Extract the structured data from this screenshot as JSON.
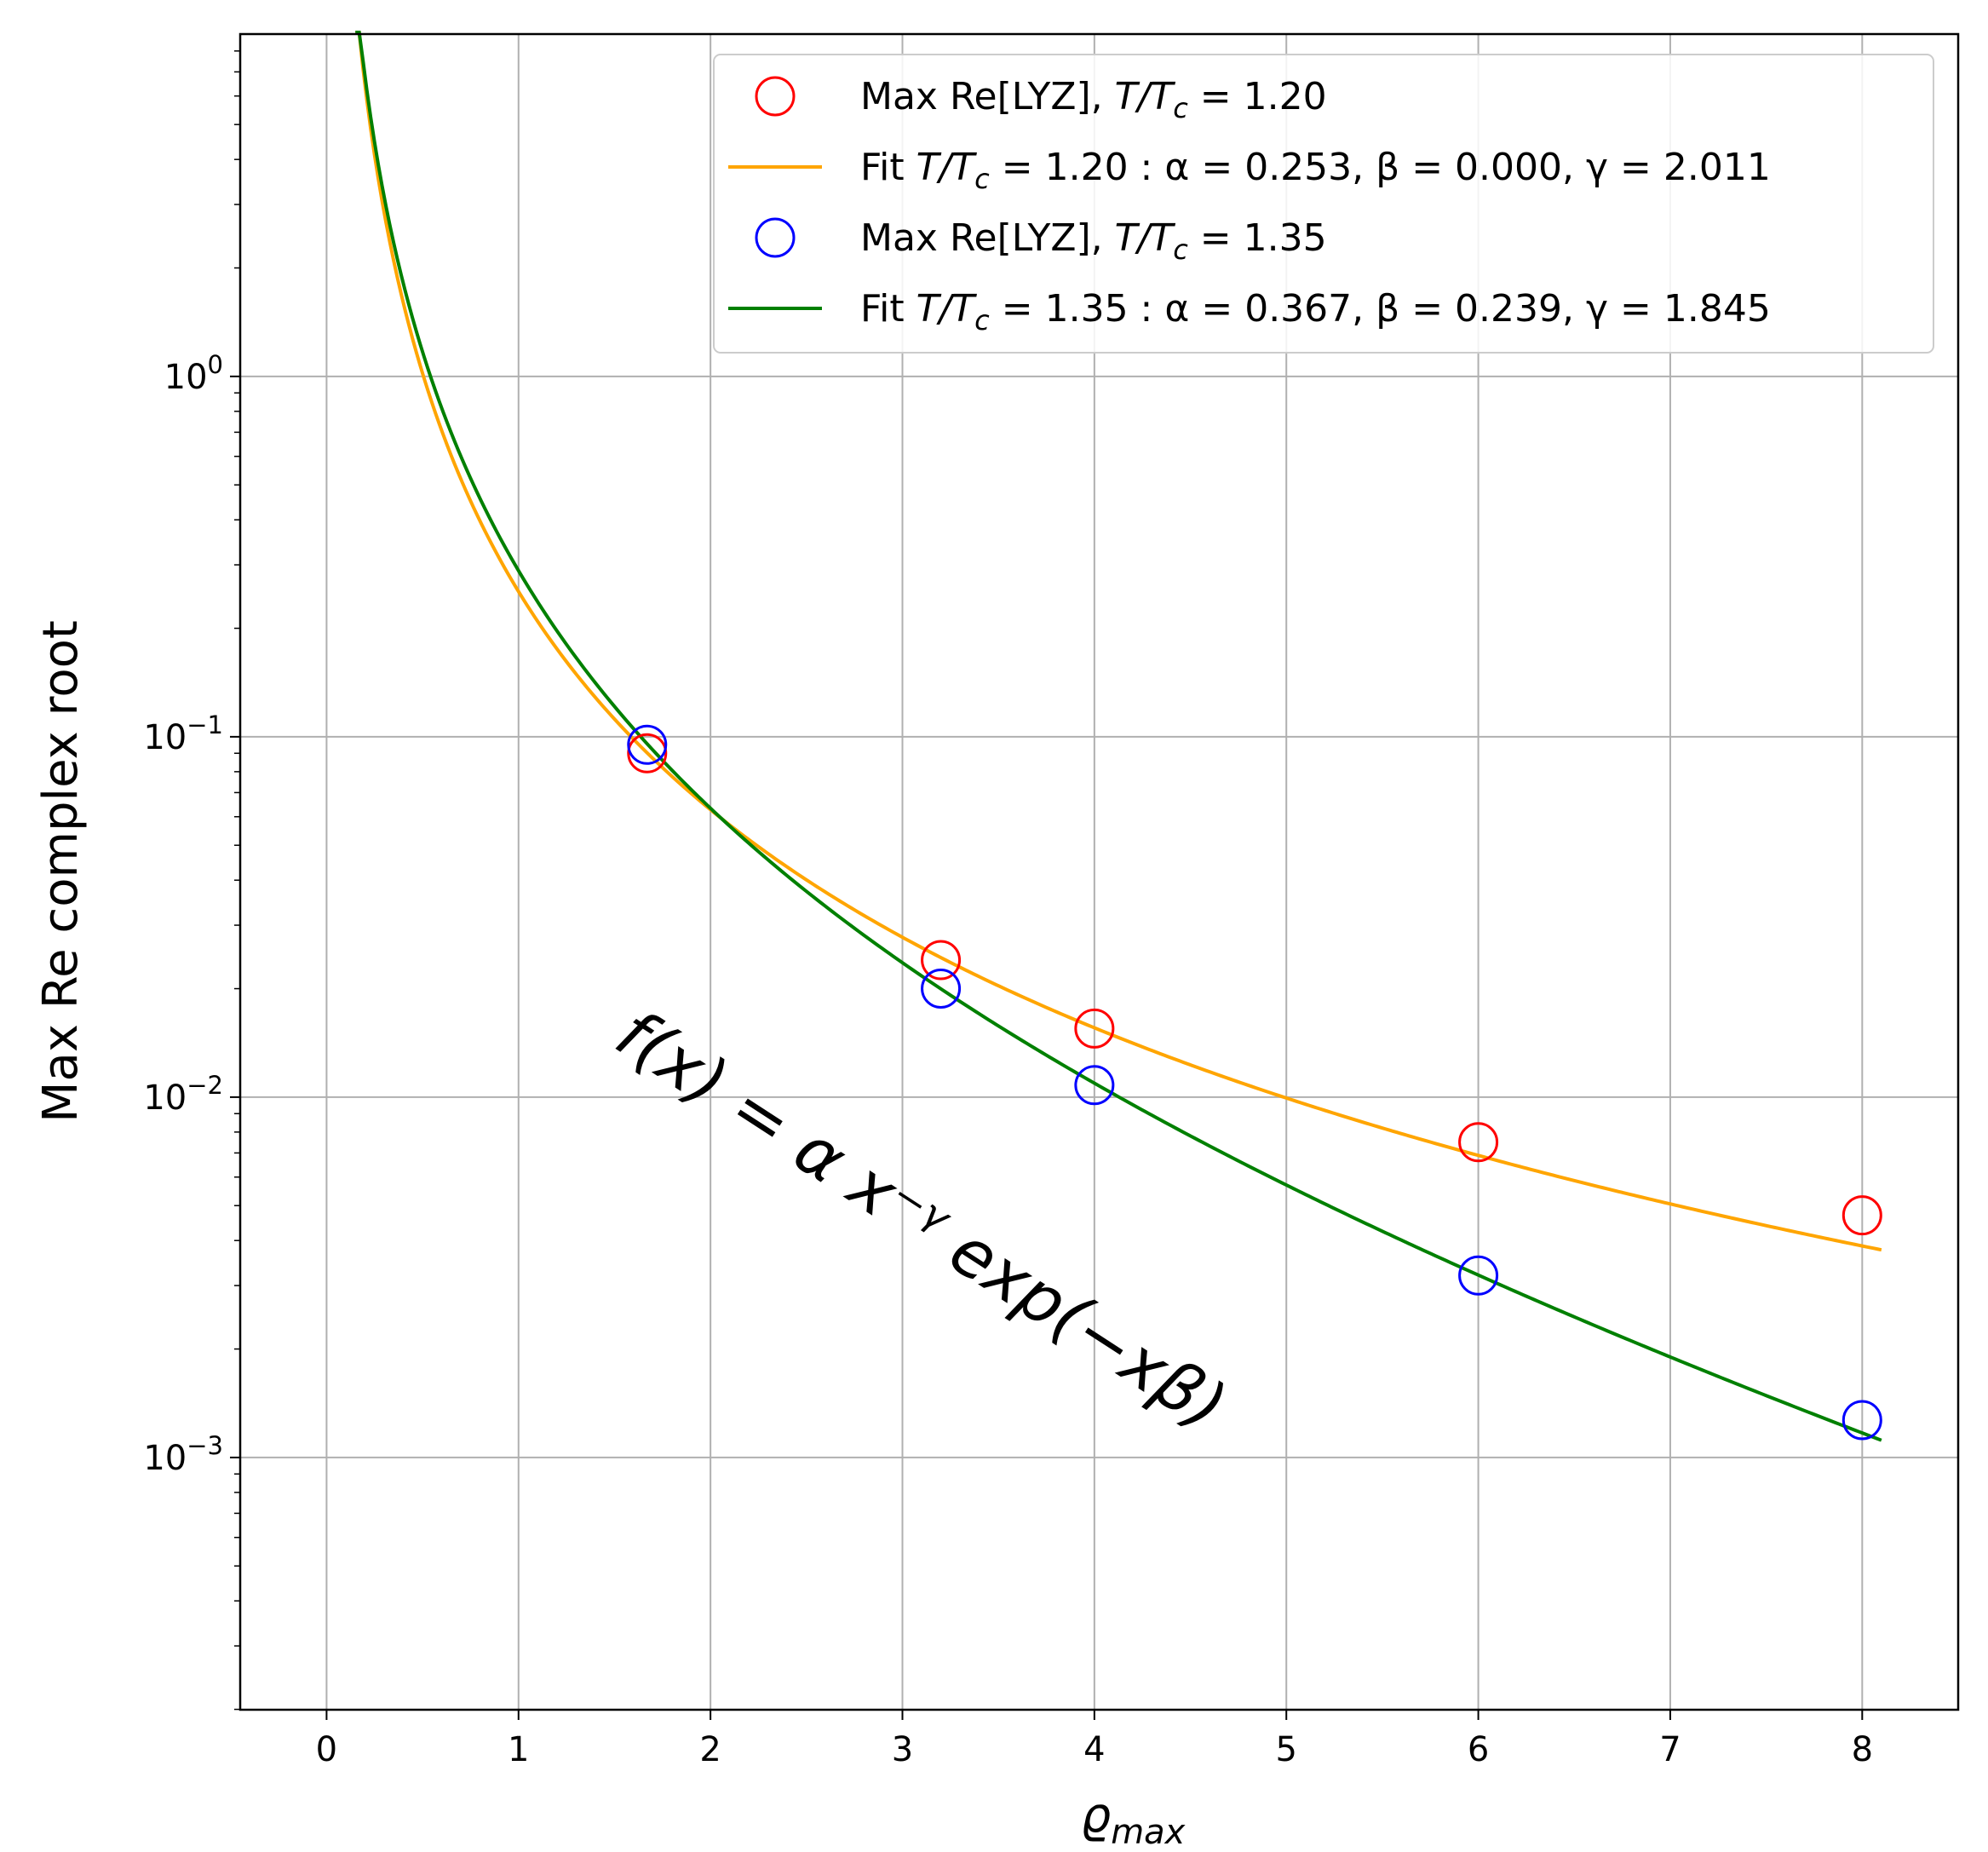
{
  "chart_data": {
    "type": "scatter",
    "xlabel": "ϱ",
    "xlabel_sub": "max",
    "ylabel": "Max Re complex root",
    "xlim": [
      -0.45,
      8.5
    ],
    "ylim_log10": [
      -3.7,
      0.95
    ],
    "yscale": "log",
    "grid": true,
    "legend_position": "top-right",
    "x_ticks": [
      0,
      1,
      2,
      3,
      4,
      5,
      6,
      7,
      8
    ],
    "x_tick_labels": [
      "0",
      "1",
      "2",
      "3",
      "4",
      "5",
      "6",
      "7",
      "8"
    ],
    "y_ticks_log10": [
      0,
      -1,
      -2,
      -3
    ],
    "y_tick_labels": [
      {
        "base": "10",
        "exp": "0"
      },
      {
        "base": "10",
        "exp": "−1"
      },
      {
        "base": "10",
        "exp": "−2"
      },
      {
        "base": "10",
        "exp": "−3"
      }
    ],
    "series": [
      {
        "name": "Max Re[LYZ], T/Tc = 1.20",
        "legend_prefix": "Max Re[LYZ], ",
        "legend_math": "T/T",
        "legend_sub": "c",
        "legend_suffix": " = 1.20",
        "kind": "points",
        "color": "#ff0000",
        "x": [
          1.67,
          3.2,
          4.0,
          6.0,
          8.0
        ],
        "y": [
          0.09,
          0.024,
          0.0155,
          0.0075,
          0.0047
        ]
      },
      {
        "name": "Fit T/Tc = 1.20 : α = 0.253, β = 0.000, γ = 2.011",
        "legend_prefix": "Fit ",
        "legend_math": "T/T",
        "legend_sub": "c",
        "legend_suffix": " = 1.20 : α = 0.253, β = 0.000, γ = 2.011",
        "kind": "fit",
        "color": "#ffa500",
        "alpha": 0.253,
        "beta": 0.0,
        "gamma": 2.011,
        "x_range": [
          0.15,
          8.1
        ]
      },
      {
        "name": "Max Re[LYZ], T/Tc = 1.35",
        "legend_prefix": "Max Re[LYZ], ",
        "legend_math": "T/T",
        "legend_sub": "c",
        "legend_suffix": " = 1.35",
        "kind": "points",
        "color": "#0000ff",
        "x": [
          1.67,
          3.2,
          4.0,
          6.0,
          8.0
        ],
        "y": [
          0.095,
          0.02,
          0.0108,
          0.0032,
          0.00127
        ]
      },
      {
        "name": "Fit T/Tc = 1.35 : α = 0.367, β = 0.239, γ = 1.845",
        "legend_prefix": "Fit ",
        "legend_math": "T/T",
        "legend_sub": "c",
        "legend_suffix": " = 1.35 : α = 0.367, β = 0.239, γ = 1.845",
        "kind": "fit",
        "color": "#008000",
        "alpha": 0.367,
        "beta": 0.239,
        "gamma": 1.845,
        "x_range": [
          0.15,
          8.1
        ]
      }
    ],
    "annotation": "f(x) = α x⁻ᵞ exp(−xβ)"
  }
}
